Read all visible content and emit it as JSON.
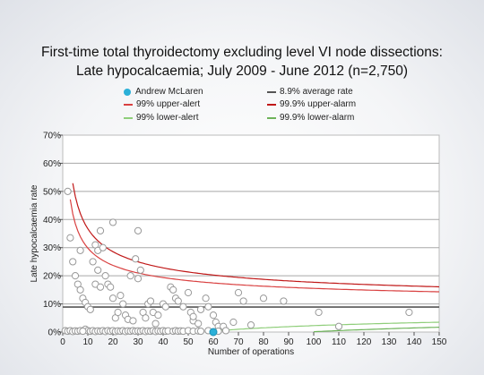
{
  "chart_data": {
    "type": "scatter",
    "title": "First-time total thyroidectomy excluding level VI node dissections:",
    "subtitle": "Late hypocalcaemia; July 2009 - June 2012 (n=2,750)",
    "xlabel": "Number of operations",
    "ylabel": "Late hypocalcaemia rate",
    "xlim": [
      0,
      150
    ],
    "ylim": [
      0,
      70
    ],
    "x_ticks": [
      "0",
      "10",
      "20",
      "30",
      "40",
      "50",
      "60",
      "70",
      "80",
      "90",
      "100",
      "110",
      "120",
      "130",
      "140",
      "150"
    ],
    "y_ticks": [
      "0%",
      "10%",
      "20%",
      "30%",
      "40%",
      "50%",
      "60%",
      "70%"
    ],
    "grid": true,
    "legend_position": "top",
    "legend": {
      "highlight": "Andrew McLaren",
      "upper_alert": "99% upper-alert",
      "lower_alert": "99% lower-alert",
      "average": "8.9% average rate",
      "upper_alarm": "99.9% upper-alarm",
      "lower_alarm": "99.9% lower-alarm"
    },
    "average_rate": 8.9,
    "colors": {
      "highlight": "#2bb0d8",
      "alert": "#d94040",
      "alarm": "#c01818",
      "lower_alert": "#8fce7a",
      "lower_alarm": "#6db35a",
      "average": "#555555",
      "points": "#999999"
    },
    "highlight_point": {
      "name": "Andrew McLaren",
      "x": 60,
      "y": 0
    },
    "points": [
      [
        2,
        50
      ],
      [
        3,
        33.5
      ],
      [
        4,
        25
      ],
      [
        5,
        20
      ],
      [
        6,
        17
      ],
      [
        7,
        15
      ],
      [
        7,
        29
      ],
      [
        8,
        12
      ],
      [
        9,
        10.5
      ],
      [
        10,
        9
      ],
      [
        11,
        8
      ],
      [
        12,
        25
      ],
      [
        13,
        31
      ],
      [
        13,
        17
      ],
      [
        14,
        29
      ],
      [
        14,
        22
      ],
      [
        15,
        16
      ],
      [
        15,
        36
      ],
      [
        16,
        30
      ],
      [
        17,
        20
      ],
      [
        18,
        17
      ],
      [
        19,
        16
      ],
      [
        20,
        39
      ],
      [
        20,
        12
      ],
      [
        21,
        5
      ],
      [
        22,
        7
      ],
      [
        23,
        13
      ],
      [
        24,
        10
      ],
      [
        25,
        6
      ],
      [
        26,
        4.5
      ],
      [
        27,
        20
      ],
      [
        28,
        4
      ],
      [
        29,
        26
      ],
      [
        30,
        36
      ],
      [
        30,
        19
      ],
      [
        31,
        22
      ],
      [
        32,
        7
      ],
      [
        33,
        5
      ],
      [
        34,
        10
      ],
      [
        35,
        11
      ],
      [
        36,
        7
      ],
      [
        37,
        3
      ],
      [
        38,
        6
      ],
      [
        40,
        10
      ],
      [
        41,
        9
      ],
      [
        43,
        16
      ],
      [
        44,
        15
      ],
      [
        45,
        12
      ],
      [
        46,
        11
      ],
      [
        48,
        9
      ],
      [
        50,
        14
      ],
      [
        51,
        7
      ],
      [
        52,
        4
      ],
      [
        52,
        5.5
      ],
      [
        54,
        3
      ],
      [
        55,
        8
      ],
      [
        57,
        12
      ],
      [
        58,
        9
      ],
      [
        60,
        6
      ],
      [
        61,
        3.5
      ],
      [
        62,
        2
      ],
      [
        64,
        2
      ],
      [
        68,
        3.5
      ],
      [
        70,
        14
      ],
      [
        72,
        11
      ],
      [
        75,
        2.5
      ],
      [
        80,
        12
      ],
      [
        88,
        11
      ],
      [
        102,
        7
      ],
      [
        110,
        2
      ],
      [
        138,
        7
      ],
      [
        9,
        1
      ],
      [
        10,
        0.5
      ],
      [
        11,
        0.3
      ],
      [
        12,
        0.5
      ],
      [
        13,
        0.2
      ],
      [
        14,
        0.4
      ],
      [
        15,
        0.3
      ],
      [
        16,
        0.5
      ],
      [
        17,
        0.2
      ],
      [
        18,
        0.5
      ],
      [
        19,
        0.3
      ],
      [
        20,
        0.5
      ],
      [
        21,
        0.2
      ],
      [
        22,
        0.4
      ],
      [
        23,
        0.3
      ],
      [
        24,
        0.5
      ],
      [
        25,
        0.2
      ],
      [
        26,
        0.4
      ],
      [
        27,
        0.3
      ],
      [
        28,
        0.5
      ],
      [
        29,
        0.3
      ],
      [
        30,
        0.4
      ],
      [
        31,
        0.3
      ],
      [
        32,
        0.5
      ],
      [
        33,
        0.2
      ],
      [
        34,
        0.4
      ],
      [
        35,
        0.3
      ],
      [
        36,
        0.5
      ],
      [
        37,
        0.2
      ],
      [
        38,
        0.4
      ],
      [
        39,
        0.3
      ],
      [
        40,
        0.5
      ],
      [
        41,
        0.3
      ],
      [
        42,
        0.4
      ],
      [
        44,
        0.3
      ],
      [
        45,
        0.5
      ],
      [
        46,
        0.3
      ],
      [
        47,
        0.4
      ],
      [
        48,
        0.3
      ],
      [
        50,
        0.5
      ],
      [
        52,
        0.3
      ],
      [
        54,
        0.4
      ],
      [
        55,
        0.3
      ],
      [
        58,
        0.5
      ],
      [
        62,
        0.3
      ],
      [
        65,
        0.5
      ],
      [
        1,
        0.5
      ],
      [
        2,
        0.3
      ],
      [
        3,
        0.5
      ],
      [
        4,
        0.2
      ],
      [
        5,
        0.4
      ],
      [
        6,
        0.3
      ],
      [
        7,
        0.5
      ],
      [
        8,
        0.3
      ]
    ]
  }
}
